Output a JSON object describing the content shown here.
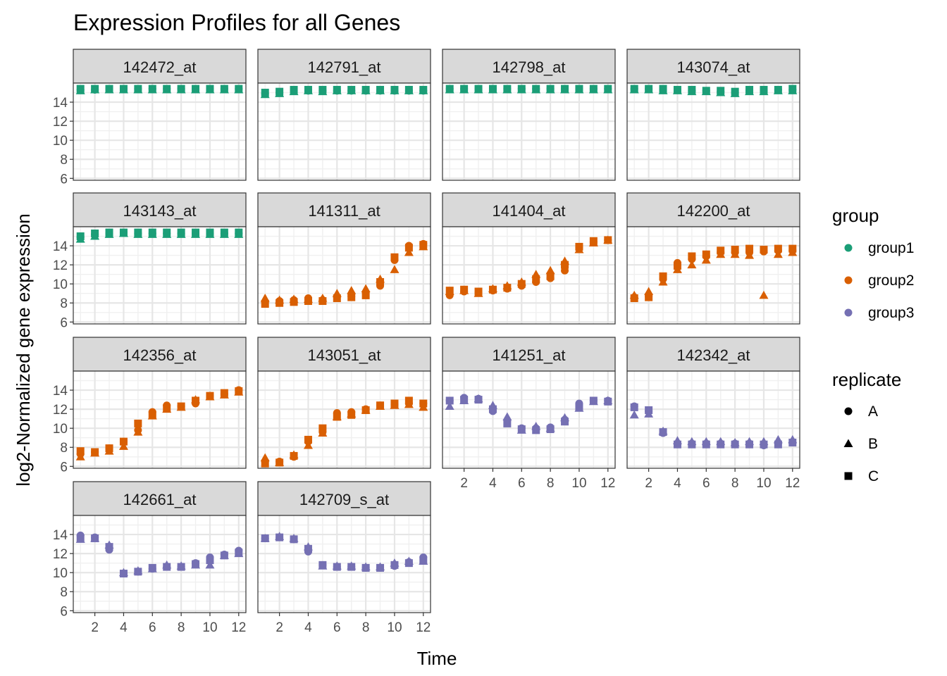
{
  "chart_data": {
    "type": "scatter",
    "title": "Expression Profiles for all Genes",
    "xlabel": "Time",
    "ylabel": "log2-Normalized gene expression",
    "xlim": [
      0.5,
      12.5
    ],
    "ylim": [
      5.8,
      16.0
    ],
    "x_ticks": [
      2,
      4,
      6,
      8,
      10,
      12
    ],
    "y_ticks": [
      6,
      8,
      10,
      12,
      14
    ],
    "grid": true,
    "legend_position": "right",
    "legend_group": {
      "title": "group",
      "entries": [
        {
          "label": "group1",
          "color": "#1b9e77"
        },
        {
          "label": "group2",
          "color": "#d95f02"
        },
        {
          "label": "group3",
          "color": "#7570b3"
        }
      ]
    },
    "legend_replicate": {
      "title": "replicate",
      "entries": [
        {
          "label": "A",
          "shape": "circle"
        },
        {
          "label": "B",
          "shape": "triangle"
        },
        {
          "label": "C",
          "shape": "square"
        }
      ]
    },
    "times": [
      1,
      2,
      3,
      4,
      5,
      6,
      7,
      8,
      9,
      10,
      11,
      12
    ],
    "panels": [
      {
        "name": "142472_at",
        "group": "group1",
        "A": [
          15.3,
          15.3,
          15.4,
          15.4,
          15.4,
          15.4,
          15.4,
          15.4,
          15.4,
          15.4,
          15.4,
          15.4
        ],
        "B": [
          15.2,
          15.3,
          15.3,
          15.3,
          15.3,
          15.3,
          15.3,
          15.3,
          15.3,
          15.3,
          15.3,
          15.3
        ],
        "C": [
          15.4,
          15.4,
          15.4,
          15.4,
          15.4,
          15.4,
          15.4,
          15.4,
          15.4,
          15.4,
          15.4,
          15.4
        ]
      },
      {
        "name": "142791_at",
        "group": "group1",
        "A": [
          14.9,
          15.0,
          15.2,
          15.2,
          15.2,
          15.2,
          15.2,
          15.2,
          15.2,
          15.2,
          15.2,
          15.2
        ],
        "B": [
          14.8,
          14.9,
          15.1,
          15.2,
          15.1,
          15.2,
          15.2,
          15.2,
          15.2,
          15.2,
          15.2,
          15.2
        ],
        "C": [
          15.0,
          15.1,
          15.3,
          15.3,
          15.3,
          15.3,
          15.3,
          15.3,
          15.3,
          15.3,
          15.3,
          15.3
        ]
      },
      {
        "name": "142798_at",
        "group": "group1",
        "A": [
          15.4,
          15.4,
          15.4,
          15.4,
          15.4,
          15.4,
          15.4,
          15.4,
          15.4,
          15.4,
          15.4,
          15.4
        ],
        "B": [
          15.3,
          15.3,
          15.3,
          15.3,
          15.3,
          15.3,
          15.3,
          15.3,
          15.3,
          15.3,
          15.3,
          15.3
        ],
        "C": [
          15.4,
          15.4,
          15.4,
          15.4,
          15.4,
          15.4,
          15.4,
          15.4,
          15.4,
          15.4,
          15.4,
          15.4
        ]
      },
      {
        "name": "143074_at",
        "group": "group1",
        "A": [
          15.4,
          15.4,
          15.3,
          15.3,
          15.2,
          15.2,
          15.1,
          15.0,
          15.2,
          15.2,
          15.3,
          15.3
        ],
        "B": [
          15.3,
          15.3,
          15.2,
          15.2,
          15.1,
          15.1,
          15.0,
          14.9,
          15.1,
          15.1,
          15.2,
          15.2
        ],
        "C": [
          15.4,
          15.4,
          15.4,
          15.3,
          15.3,
          15.2,
          15.2,
          15.1,
          15.3,
          15.3,
          15.3,
          15.4
        ]
      },
      {
        "name": "143143_at",
        "group": "group1",
        "A": [
          14.9,
          15.2,
          15.3,
          15.4,
          15.3,
          15.3,
          15.3,
          15.3,
          15.3,
          15.3,
          15.3,
          15.3
        ],
        "B": [
          14.7,
          15.0,
          15.2,
          15.3,
          15.2,
          15.2,
          15.2,
          15.2,
          15.2,
          15.2,
          15.2,
          15.2
        ],
        "C": [
          15.0,
          15.3,
          15.4,
          15.4,
          15.4,
          15.4,
          15.4,
          15.4,
          15.4,
          15.4,
          15.4,
          15.4
        ]
      },
      {
        "name": "141311_at",
        "group": "group2",
        "A": [
          8.1,
          8.2,
          8.3,
          8.5,
          8.3,
          8.6,
          8.7,
          9.1,
          9.8,
          12.5,
          14.0,
          14.2
        ],
        "B": [
          8.5,
          8.3,
          8.4,
          8.4,
          8.5,
          9.0,
          9.3,
          9.5,
          10.5,
          11.5,
          13.3,
          13.9
        ],
        "C": [
          7.9,
          8.0,
          8.1,
          8.2,
          8.2,
          8.5,
          8.6,
          8.8,
          10.2,
          12.8,
          13.8,
          14.1
        ]
      },
      {
        "name": "141404_at",
        "group": "group2",
        "A": [
          8.8,
          9.2,
          9.1,
          9.3,
          9.5,
          9.8,
          10.2,
          10.6,
          11.4,
          13.8,
          14.4,
          14.6
        ],
        "B": [
          9.2,
          9.3,
          9.0,
          9.5,
          9.8,
          10.2,
          11.0,
          11.4,
          12.4,
          13.6,
          14.3,
          14.6
        ],
        "C": [
          9.3,
          9.4,
          9.2,
          9.4,
          9.6,
          10.0,
          10.5,
          10.8,
          12.0,
          13.9,
          14.5,
          14.6
        ]
      },
      {
        "name": "142200_at",
        "group": "group2",
        "A": [
          8.6,
          8.7,
          10.5,
          12.2,
          12.6,
          12.9,
          13.3,
          13.3,
          13.3,
          13.4,
          13.5,
          13.5
        ],
        "B": [
          8.8,
          9.2,
          10.2,
          11.5,
          12.0,
          12.5,
          13.1,
          13.1,
          13.0,
          8.8,
          13.1,
          13.3
        ],
        "C": [
          8.5,
          8.6,
          10.8,
          11.9,
          12.9,
          13.1,
          13.5,
          13.6,
          13.7,
          13.6,
          13.7,
          13.7
        ]
      },
      {
        "name": "142356_at",
        "group": "group2",
        "A": [
          7.3,
          7.5,
          7.9,
          8.6,
          9.8,
          11.7,
          12.4,
          12.3,
          12.6,
          13.4,
          13.6,
          14.0
        ],
        "B": [
          7.0,
          7.4,
          7.6,
          8.1,
          9.6,
          11.3,
          12.0,
          12.2,
          13.0,
          13.3,
          13.5,
          13.8
        ],
        "C": [
          7.6,
          7.5,
          7.9,
          8.6,
          10.5,
          11.4,
          12.1,
          12.3,
          12.9,
          13.4,
          13.7,
          13.9
        ]
      },
      {
        "name": "143051_at",
        "group": "group2",
        "A": [
          6.5,
          6.5,
          7.0,
          8.6,
          9.6,
          11.6,
          11.7,
          12.0,
          12.4,
          12.5,
          12.6,
          12.6
        ],
        "B": [
          6.9,
          6.4,
          7.2,
          8.2,
          9.5,
          11.2,
          11.5,
          11.9,
          12.3,
          12.4,
          12.5,
          12.2
        ],
        "C": [
          6.3,
          6.4,
          7.1,
          8.8,
          10.0,
          11.2,
          11.4,
          11.9,
          12.4,
          12.6,
          12.9,
          12.6
        ]
      },
      {
        "name": "141251_at",
        "group": "group3",
        "A": [
          12.9,
          13.2,
          13.1,
          11.8,
          10.8,
          10.0,
          10.0,
          10.1,
          10.9,
          12.6,
          12.9,
          12.9
        ],
        "B": [
          12.3,
          12.9,
          13.1,
          12.4,
          11.2,
          9.8,
          10.2,
          10.0,
          11.1,
          12.1,
          12.8,
          12.9
        ],
        "C": [
          12.9,
          13.0,
          13.0,
          12.0,
          10.5,
          9.9,
          9.8,
          9.9,
          10.7,
          12.2,
          12.9,
          12.8
        ]
      },
      {
        "name": "142342_at",
        "group": "group3",
        "A": [
          12.3,
          11.8,
          9.5,
          8.4,
          8.4,
          8.4,
          8.4,
          8.4,
          8.4,
          8.2,
          8.4,
          8.5
        ],
        "B": [
          11.4,
          11.5,
          9.7,
          8.7,
          8.6,
          8.6,
          8.6,
          8.5,
          8.6,
          8.6,
          8.8,
          8.8
        ],
        "C": [
          12.2,
          11.9,
          9.6,
          8.3,
          8.3,
          8.3,
          8.3,
          8.3,
          8.3,
          8.3,
          8.3,
          8.5
        ]
      },
      {
        "name": "142661_at",
        "group": "group3",
        "A": [
          13.9,
          13.7,
          12.4,
          9.9,
          10.1,
          10.4,
          10.6,
          10.6,
          11.0,
          11.6,
          11.9,
          12.3
        ],
        "B": [
          13.5,
          13.6,
          12.9,
          10.0,
          10.2,
          10.4,
          10.8,
          10.7,
          10.8,
          10.8,
          11.8,
          12.0
        ],
        "C": [
          13.6,
          13.6,
          12.7,
          9.9,
          10.1,
          10.5,
          10.6,
          10.6,
          10.9,
          11.3,
          11.8,
          12.1
        ]
      },
      {
        "name": "142709_s_at",
        "group": "group3",
        "A": [
          13.6,
          13.7,
          13.5,
          12.2,
          10.8,
          10.6,
          10.6,
          10.5,
          10.5,
          10.7,
          11.1,
          11.6
        ],
        "B": [
          13.6,
          13.8,
          13.6,
          12.7,
          10.7,
          10.7,
          10.7,
          10.6,
          10.6,
          11.0,
          11.2,
          11.2
        ],
        "C": [
          13.6,
          13.7,
          13.5,
          12.5,
          10.8,
          10.6,
          10.6,
          10.5,
          10.5,
          10.8,
          11.0,
          11.3
        ]
      }
    ]
  }
}
